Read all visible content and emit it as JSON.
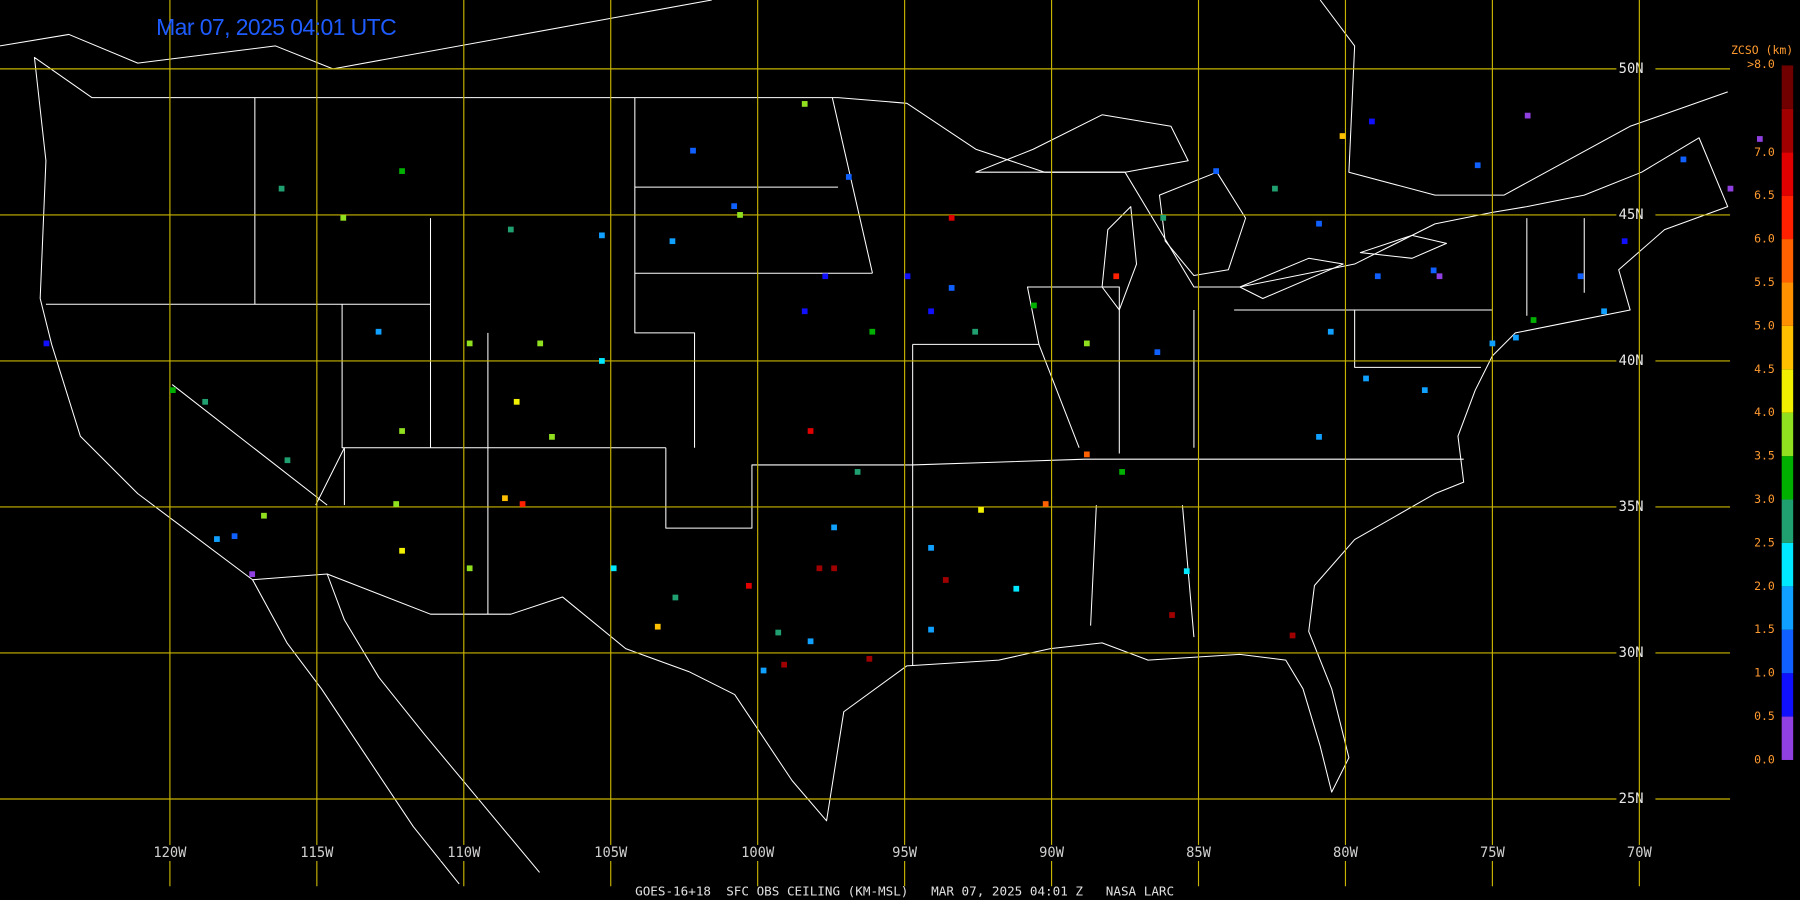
{
  "map": {
    "title": "Mar 07, 2025 04:01 UTC",
    "footer": "GOES-16+18  SFC OBS CEILING (KM-MSL)   MAR 07, 2025 04:01 Z   NASA LARC",
    "lat_ticks": [
      {
        "value": 50,
        "label": "50N"
      },
      {
        "value": 45,
        "label": "45N"
      },
      {
        "value": 40,
        "label": "40N"
      },
      {
        "value": 35,
        "label": "35N"
      },
      {
        "value": 30,
        "label": "30N"
      },
      {
        "value": 25,
        "label": "25N"
      }
    ],
    "lon_ticks": [
      {
        "value": -120,
        "label": "120W"
      },
      {
        "value": -115,
        "label": "115W"
      },
      {
        "value": -110,
        "label": "110W"
      },
      {
        "value": -105,
        "label": "105W"
      },
      {
        "value": -100,
        "label": "100W"
      },
      {
        "value": -95,
        "label": "95W"
      },
      {
        "value": -90,
        "label": "90W"
      },
      {
        "value": -85,
        "label": "85W"
      },
      {
        "value": -80,
        "label": "80W"
      },
      {
        "value": -75,
        "label": "75W"
      },
      {
        "value": -70,
        "label": "70W"
      }
    ],
    "grid_color": "#c8b400",
    "legend": {
      "title": "ZCSO (km)",
      "top_label": {
        "value": 8,
        "label": ">8.0"
      },
      "ticks": [
        {
          "value": 0,
          "label": "0.0"
        },
        {
          "value": 0.5,
          "label": "0.5"
        },
        {
          "value": 1,
          "label": "1.0"
        },
        {
          "value": 1.5,
          "label": "1.5"
        },
        {
          "value": 2,
          "label": "2.0"
        },
        {
          "value": 2.5,
          "label": "2.5"
        },
        {
          "value": 3,
          "label": "3.0"
        },
        {
          "value": 3.5,
          "label": "3.5"
        },
        {
          "value": 4,
          "label": "4.0"
        },
        {
          "value": 4.5,
          "label": "4.5"
        },
        {
          "value": 5,
          "label": "5.0"
        },
        {
          "value": 5.5,
          "label": "5.5"
        },
        {
          "value": 6,
          "label": "6.0"
        },
        {
          "value": 6.5,
          "label": "6.5"
        },
        {
          "value": 7,
          "label": "7.0"
        }
      ],
      "colors": [
        "#9040e0",
        "#1010ff",
        "#1060ff",
        "#10a0ff",
        "#00e8ff",
        "#20a070",
        "#00b000",
        "#90e020",
        "#f0f000",
        "#ffc000",
        "#ff9000",
        "#ff6000",
        "#ff2000",
        "#e00000",
        "#a00000",
        "#700000"
      ]
    },
    "stations": [
      {
        "lon": -78.9,
        "lat": 42.9,
        "km": 1.2
      },
      {
        "lon": -77.0,
        "lat": 43.1,
        "km": 1.2
      },
      {
        "lon": -75.0,
        "lat": 40.6,
        "km": 1.7
      },
      {
        "lon": -74.2,
        "lat": 40.8,
        "km": 1.7
      },
      {
        "lon": -80.5,
        "lat": 41.0,
        "km": 1.7
      },
      {
        "lon": -79.3,
        "lat": 39.4,
        "km": 1.7
      },
      {
        "lon": -77.3,
        "lat": 39.0,
        "km": 1.7
      },
      {
        "lon": -73.6,
        "lat": 41.4,
        "km": 3.3
      },
      {
        "lon": -72.0,
        "lat": 42.9,
        "km": 1.2
      },
      {
        "lon": -71.2,
        "lat": 41.7,
        "km": 1.7
      },
      {
        "lon": -70.5,
        "lat": 44.1,
        "km": 0.8
      },
      {
        "lon": -68.5,
        "lat": 46.9,
        "km": 1.2
      },
      {
        "lon": -66.9,
        "lat": 45.9,
        "km": 0.3
      },
      {
        "lon": -73.8,
        "lat": 48.4,
        "km": 0.3
      },
      {
        "lon": -79.1,
        "lat": 48.2,
        "km": 0.8
      },
      {
        "lon": -80.1,
        "lat": 47.7,
        "km": 4.5
      },
      {
        "lon": -94.9,
        "lat": 42.9,
        "km": 0.8
      },
      {
        "lon": -94.1,
        "lat": 41.7,
        "km": 0.8
      },
      {
        "lon": -93.4,
        "lat": 42.5,
        "km": 1.2
      },
      {
        "lon": -96.1,
        "lat": 41.0,
        "km": 3.3
      },
      {
        "lon": -92.6,
        "lat": 41.0,
        "km": 2.8
      },
      {
        "lon": -90.6,
        "lat": 41.9,
        "km": 3.0
      },
      {
        "lon": -98.4,
        "lat": 41.7,
        "km": 0.8
      },
      {
        "lon": -97.7,
        "lat": 42.9,
        "km": 0.8
      },
      {
        "lon": -96.9,
        "lat": 46.3,
        "km": 1.2
      },
      {
        "lon": -100.8,
        "lat": 45.3,
        "km": 1.2
      },
      {
        "lon": -102.2,
        "lat": 47.2,
        "km": 1.2
      },
      {
        "lon": -98.4,
        "lat": 48.8,
        "km": 3.8
      },
      {
        "lon": -100.6,
        "lat": 45.0,
        "km": 3.8
      },
      {
        "lon": -105.3,
        "lat": 40.0,
        "km": 2.2
      },
      {
        "lon": -107.4,
        "lat": 40.6,
        "km": 3.8
      },
      {
        "lon": -108.2,
        "lat": 38.6,
        "km": 4.2
      },
      {
        "lon": -109.8,
        "lat": 40.6,
        "km": 3.8
      },
      {
        "lon": -112.1,
        "lat": 37.6,
        "km": 3.8
      },
      {
        "lon": -112.9,
        "lat": 41.0,
        "km": 1.7
      },
      {
        "lon": -114.1,
        "lat": 44.9,
        "km": 3.8
      },
      {
        "lon": -112.1,
        "lat": 46.5,
        "km": 3.0
      },
      {
        "lon": -116.2,
        "lat": 45.9,
        "km": 2.5
      },
      {
        "lon": -108.4,
        "lat": 44.5,
        "km": 2.5
      },
      {
        "lon": -105.3,
        "lat": 44.3,
        "km": 1.7
      },
      {
        "lon": -102.9,
        "lat": 44.1,
        "km": 1.7
      },
      {
        "lon": -119.9,
        "lat": 39.0,
        "km": 3.3
      },
      {
        "lon": -118.8,
        "lat": 38.6,
        "km": 2.8
      },
      {
        "lon": -118.4,
        "lat": 33.9,
        "km": 1.7
      },
      {
        "lon": -117.8,
        "lat": 34.0,
        "km": 1.2
      },
      {
        "lon": -117.2,
        "lat": 32.7,
        "km": 0.3
      },
      {
        "lon": -116.8,
        "lat": 34.7,
        "km": 3.8
      },
      {
        "lon": -124.2,
        "lat": 40.6,
        "km": 0.8
      },
      {
        "lon": -116.0,
        "lat": 36.6,
        "km": 2.5
      },
      {
        "lon": -112.3,
        "lat": 35.1,
        "km": 3.8
      },
      {
        "lon": -112.1,
        "lat": 33.5,
        "km": 4.2
      },
      {
        "lon": -109.8,
        "lat": 32.9,
        "km": 3.8
      },
      {
        "lon": -107.0,
        "lat": 37.4,
        "km": 3.8
      },
      {
        "lon": -108.6,
        "lat": 35.3,
        "km": 4.5
      },
      {
        "lon": -108.0,
        "lat": 35.1,
        "km": 6.2
      },
      {
        "lon": -104.9,
        "lat": 32.9,
        "km": 2.2
      },
      {
        "lon": -103.4,
        "lat": 30.9,
        "km": 4.5
      },
      {
        "lon": -102.8,
        "lat": 31.9,
        "km": 2.8
      },
      {
        "lon": -100.3,
        "lat": 32.3,
        "km": 6.8
      },
      {
        "lon": -97.9,
        "lat": 32.9,
        "km": 7.2
      },
      {
        "lon": -97.4,
        "lat": 32.9,
        "km": 7.2
      },
      {
        "lon": -99.3,
        "lat": 30.7,
        "km": 2.5
      },
      {
        "lon": -98.2,
        "lat": 30.4,
        "km": 1.7
      },
      {
        "lon": -99.1,
        "lat": 29.6,
        "km": 7.2
      },
      {
        "lon": -99.8,
        "lat": 29.4,
        "km": 1.7
      },
      {
        "lon": -96.2,
        "lat": 29.8,
        "km": 7.2
      },
      {
        "lon": -97.4,
        "lat": 34.3,
        "km": 1.7
      },
      {
        "lon": -98.2,
        "lat": 37.6,
        "km": 6.8
      },
      {
        "lon": -96.6,
        "lat": 36.2,
        "km": 2.5
      },
      {
        "lon": -93.4,
        "lat": 44.9,
        "km": 6.5
      },
      {
        "lon": -90.2,
        "lat": 35.1,
        "km": 5.8
      },
      {
        "lon": -88.8,
        "lat": 36.8,
        "km": 5.5
      },
      {
        "lon": -87.6,
        "lat": 36.2,
        "km": 3.0
      },
      {
        "lon": -85.9,
        "lat": 31.3,
        "km": 7.0
      },
      {
        "lon": -81.8,
        "lat": 30.6,
        "km": 7.2
      },
      {
        "lon": -85.4,
        "lat": 32.8,
        "km": 2.3
      },
      {
        "lon": -91.2,
        "lat": 32.2,
        "km": 2.3
      },
      {
        "lon": -92.4,
        "lat": 34.9,
        "km": 4.2
      },
      {
        "lon": -94.1,
        "lat": 33.6,
        "km": 1.7
      },
      {
        "lon": -93.6,
        "lat": 32.5,
        "km": 7.0
      },
      {
        "lon": -94.1,
        "lat": 30.8,
        "km": 1.7
      },
      {
        "lon": -80.9,
        "lat": 37.4,
        "km": 1.7
      },
      {
        "lon": -88.8,
        "lat": 40.6,
        "km": 3.8
      },
      {
        "lon": -87.8,
        "lat": 42.9,
        "km": 6.2
      },
      {
        "lon": -86.4,
        "lat": 40.3,
        "km": 1.2
      },
      {
        "lon": -86.2,
        "lat": 44.9,
        "km": 2.5
      },
      {
        "lon": -84.4,
        "lat": 46.5,
        "km": 1.2
      },
      {
        "lon": -82.4,
        "lat": 45.9,
        "km": 2.5
      },
      {
        "lon": -80.9,
        "lat": 44.7,
        "km": 1.2
      },
      {
        "lon": -76.8,
        "lat": 42.9,
        "km": 0.3
      },
      {
        "lon": -75.5,
        "lat": 46.7,
        "km": 1.2
      },
      {
        "lon": -65.9,
        "lat": 47.6,
        "km": 0.3
      }
    ]
  }
}
